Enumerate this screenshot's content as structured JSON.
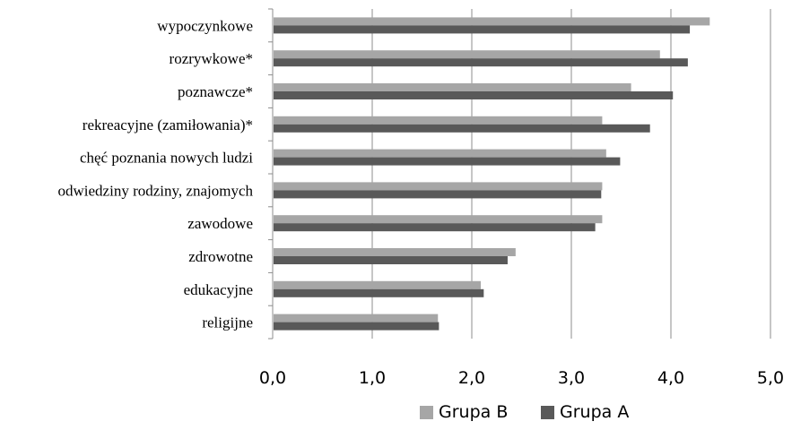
{
  "chart_data": {
    "type": "bar",
    "orientation": "horizontal",
    "categories": [
      "wypoczynkowe",
      "rozrywkowe*",
      "poznawcze*",
      "rekreacyjne (zamiłowania)*",
      "chęć poznania nowych ludzi",
      "odwiedziny rodziny, znajomych",
      "zawodowe",
      "zdrowotne",
      "edukacyjne",
      "religijne"
    ],
    "series": [
      {
        "name": "Grupa B",
        "color": "#a6a6a6",
        "values": [
          4.39,
          3.89,
          3.6,
          3.31,
          3.35,
          3.31,
          3.31,
          2.44,
          2.09,
          1.66
        ]
      },
      {
        "name": "Grupa A",
        "color": "#595959",
        "values": [
          4.19,
          4.17,
          4.02,
          3.79,
          3.49,
          3.3,
          3.24,
          2.36,
          2.12,
          1.67
        ]
      }
    ],
    "xlim": [
      0,
      5
    ],
    "xticks": [
      "0,0",
      "1,0",
      "2,0",
      "3,0",
      "4,0",
      "5,0"
    ],
    "grid": "vertical",
    "legend_position": "bottom"
  }
}
